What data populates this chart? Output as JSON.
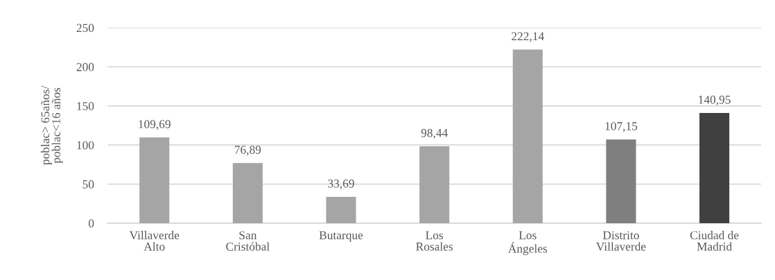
{
  "chart_data": {
    "type": "bar",
    "ylabel": "poblac> 65años/\npoblac<16 años",
    "categories": [
      "Villaverde\nAlto",
      "San\nCristóbal",
      "Butarque",
      "Los\nRosales",
      "Los\nÁngeles",
      "Distrito\nVillaverde",
      "Ciudad de\nMadrid"
    ],
    "values": [
      109.69,
      76.89,
      33.69,
      98.44,
      222.14,
      107.15,
      140.95
    ],
    "value_labels": [
      "109,69",
      "76,89",
      "33,69",
      "98,44",
      "222,14",
      "107,15",
      "140,95"
    ],
    "colors": [
      "#a5a5a5",
      "#a5a5a5",
      "#a5a5a5",
      "#a5a5a5",
      "#a5a5a5",
      "#7f7f7f",
      "#404040"
    ],
    "ylim": [
      0,
      250
    ],
    "yticks": [
      0,
      50,
      100,
      150,
      200,
      250
    ],
    "grid": "y",
    "legend": false
  }
}
